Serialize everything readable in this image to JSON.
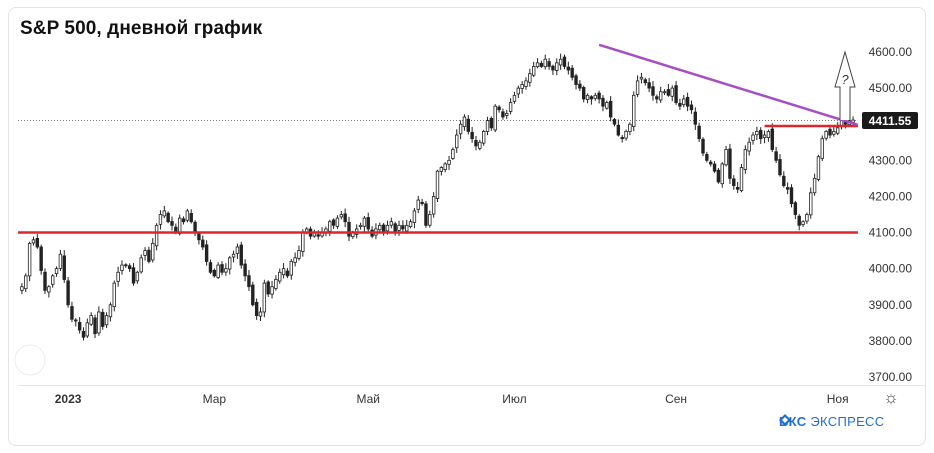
{
  "header": {
    "title": "S&P 500, дневной график"
  },
  "brand": {
    "name_bold": "БКС",
    "name_light": "ЭКСПРЕСС"
  },
  "colors": {
    "up": "#222222",
    "down": "#222222",
    "support": "#e0262d",
    "trend": "#a64fc2",
    "price_badge": "#1a1a1a"
  },
  "annotation": {
    "question_mark": "?"
  },
  "chart_data": {
    "type": "candlestick",
    "title": "S&P 500, дневной график",
    "y_ticks": [
      "4600.00",
      "4500.00",
      "4400.00",
      "4300.00",
      "4200.00",
      "4100.00",
      "4000.00",
      "3900.00",
      "3800.00",
      "3700.00"
    ],
    "y_tick_values": [
      4600,
      4500,
      4400,
      4300,
      4200,
      4100,
      4000,
      3900,
      3800,
      3700
    ],
    "ylim": [
      3690,
      4640
    ],
    "x_ticks": [
      "2023",
      "Мар",
      "Май",
      "Июл",
      "Сен",
      "Ноя"
    ],
    "x_tick_index": [
      12,
      50,
      90,
      128,
      170,
      212
    ],
    "last_price_label": "4411.55",
    "last_price": 4411.55,
    "support_level": 4100,
    "resistance_level": 4395,
    "trendline": {
      "from": {
        "index": 150,
        "value": 4620
      },
      "to": {
        "index": 232,
        "value": 4398
      }
    },
    "grid": false,
    "closes": [
      3950,
      3980,
      4070,
      4080,
      4060,
      3995,
      3940,
      3950,
      3980,
      4000,
      4040,
      3970,
      3900,
      3860,
      3855,
      3830,
      3810,
      3850,
      3870,
      3820,
      3880,
      3840,
      3870,
      3900,
      3960,
      3990,
      4010,
      4010,
      4000,
      3960,
      3990,
      4030,
      4050,
      4020,
      4070,
      4120,
      4150,
      4160,
      4130,
      4120,
      4100,
      4140,
      4130,
      4160,
      4130,
      4100,
      4080,
      4060,
      4020,
      3990,
      3980,
      4010,
      3990,
      4000,
      4030,
      4040,
      4060,
      4010,
      3980,
      3950,
      3900,
      3870,
      3880,
      3960,
      3930,
      3950,
      3970,
      3990,
      4000,
      3980,
      4020,
      4030,
      4050,
      4100,
      4110,
      4090,
      4100,
      4090,
      4100,
      4110,
      4130,
      4120,
      4140,
      4150,
      4130,
      4090,
      4100,
      4110,
      4120,
      4140,
      4110,
      4090,
      4110,
      4120,
      4100,
      4120,
      4130,
      4100,
      4120,
      4110,
      4120,
      4130,
      4160,
      4190,
      4180,
      4120,
      4150,
      4200,
      4270,
      4280,
      4290,
      4300,
      4330,
      4370,
      4400,
      4420,
      4380,
      4360,
      4340,
      4350,
      4380,
      4410,
      4390,
      4450,
      4440,
      4420,
      4430,
      4460,
      4480,
      4500,
      4510,
      4520,
      4540,
      4560,
      4570,
      4560,
      4580,
      4560,
      4550,
      4570,
      4580,
      4560,
      4550,
      4530,
      4510,
      4500,
      4470,
      4480,
      4470,
      4480,
      4470,
      4450,
      4460,
      4420,
      4400,
      4370,
      4360,
      4380,
      4400,
      4480,
      4520,
      4530,
      4515,
      4500,
      4480,
      4470,
      4490,
      4490,
      4480,
      4500,
      4460,
      4450,
      4470,
      4450,
      4440,
      4400,
      4360,
      4320,
      4300,
      4290,
      4270,
      4240,
      4290,
      4330,
      4250,
      4230,
      4220,
      4280,
      4330,
      4350,
      4370,
      4380,
      4360,
      4370,
      4380,
      4330,
      4300,
      4260,
      4230,
      4220,
      4180,
      4150,
      4120,
      4130,
      4150,
      4210,
      4250,
      4310,
      4360,
      4380,
      4370,
      4380,
      4390,
      4410,
      4400,
      4410,
      4411.55
    ]
  }
}
